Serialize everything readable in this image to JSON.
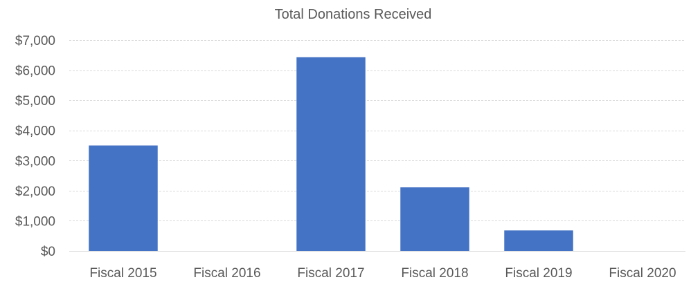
{
  "chart_data": {
    "type": "bar",
    "title": "Total Donations Received",
    "xlabel": "",
    "ylabel": "",
    "categories": [
      "Fiscal 2015",
      "Fiscal 2016",
      "Fiscal 2017",
      "Fiscal 2018",
      "Fiscal 2019",
      "Fiscal 2020"
    ],
    "values": [
      3500,
      0,
      6430,
      2110,
      680,
      0
    ],
    "ylim": [
      0,
      7000
    ],
    "yticks": [
      0,
      1000,
      2000,
      3000,
      4000,
      5000,
      6000,
      7000
    ],
    "ytick_labels": [
      "$0",
      "$1,000",
      "$2,000",
      "$3,000",
      "$4,000",
      "$5,000",
      "$6,000",
      "$7,000"
    ],
    "grid": true,
    "legend": "none",
    "bar_color": "#4472c4"
  }
}
